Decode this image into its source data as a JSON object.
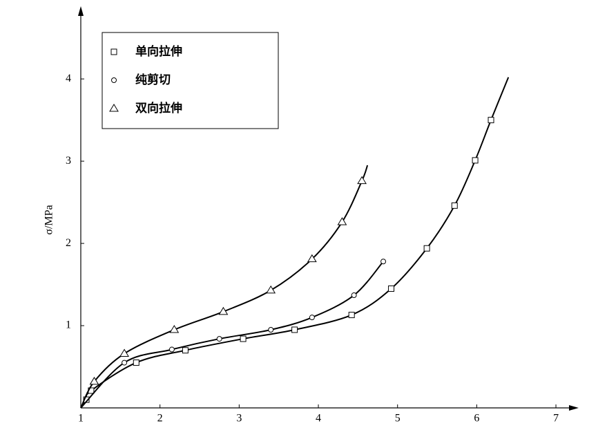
{
  "chart_data": {
    "type": "line",
    "ylabel": "σ/MPa",
    "xlim": [
      1,
      7.2
    ],
    "ylim": [
      0,
      4.8
    ],
    "xticks": [
      1,
      2,
      3,
      4,
      5,
      6,
      7
    ],
    "yticks": [
      1,
      2,
      3,
      4
    ],
    "legend": "upper left",
    "series": [
      {
        "name": "单向拉伸",
        "marker": "square",
        "color": "#000000",
        "x": [
          1,
          1.07,
          1.13,
          1.7,
          2.32,
          3.05,
          3.7,
          4.42,
          4.92,
          5.37,
          5.72,
          5.98,
          6.18,
          6.4
        ],
        "values": [
          0,
          0.1,
          0.21,
          0.55,
          0.7,
          0.84,
          0.95,
          1.13,
          1.45,
          1.94,
          2.46,
          3.01,
          3.5,
          4.02
        ],
        "marked": [
          false,
          true,
          true,
          true,
          true,
          true,
          true,
          true,
          true,
          true,
          true,
          true,
          true,
          false
        ]
      },
      {
        "name": "纯剪切",
        "marker": "circle",
        "color": "#000000",
        "x": [
          1,
          1.55,
          2.15,
          2.75,
          3.4,
          3.92,
          4.45,
          4.82
        ],
        "values": [
          0,
          0.55,
          0.71,
          0.84,
          0.95,
          1.1,
          1.37,
          1.78
        ],
        "marked": [
          false,
          true,
          true,
          true,
          true,
          true,
          true,
          true
        ]
      },
      {
        "name": "双向拉伸",
        "marker": "triangle",
        "color": "#000000",
        "x": [
          1,
          1.17,
          1.55,
          2.18,
          2.8,
          3.4,
          3.92,
          4.3,
          4.55,
          4.62
        ],
        "values": [
          0,
          0.32,
          0.66,
          0.95,
          1.17,
          1.43,
          1.81,
          2.26,
          2.76,
          2.95
        ],
        "marked": [
          false,
          true,
          true,
          true,
          true,
          true,
          true,
          true,
          true,
          false
        ]
      }
    ]
  }
}
